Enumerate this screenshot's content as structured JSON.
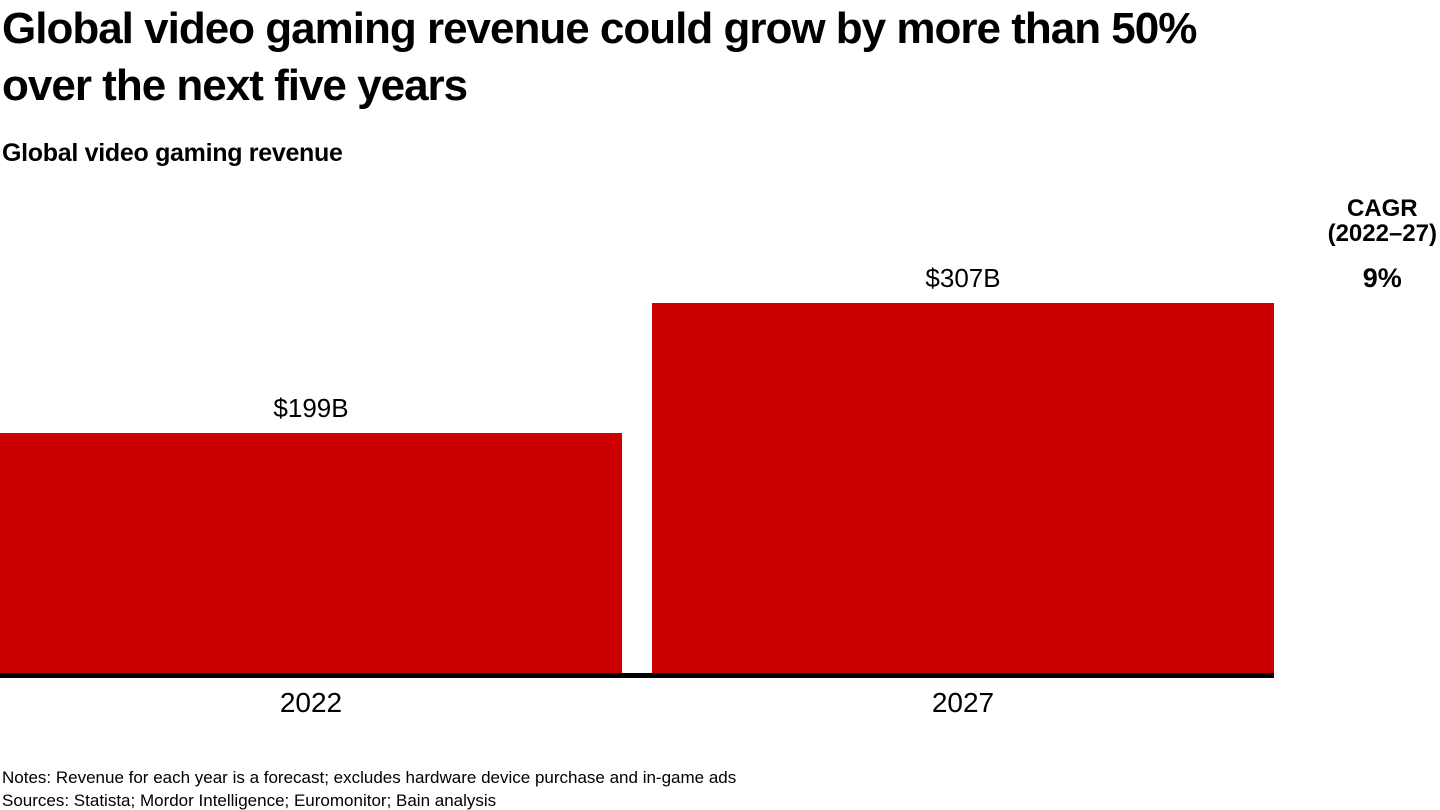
{
  "title_lines": [
    "Global video gaming revenue could grow by more than 50%",
    "over the next five years"
  ],
  "subtitle": "Global video gaming revenue",
  "cagr": {
    "label_line1": "CAGR",
    "label_line2": "(2022–27)",
    "value": "9%"
  },
  "chart_data": {
    "type": "bar",
    "title": "Global video gaming revenue",
    "unit": "USD billions",
    "categories": [
      "2022",
      "2027"
    ],
    "values": [
      199,
      307
    ],
    "value_labels": [
      "$199B",
      "$307B"
    ],
    "bar_color": "#cc0000",
    "axis_color": "#000000",
    "ylim": [
      0,
      307
    ],
    "grid": false,
    "legend": false,
    "annotations": {
      "cagr_label": "CAGR (2022–27)",
      "cagr_value": "9%"
    }
  },
  "colors": {
    "bar": "#cc0000",
    "axis": "#000000",
    "text": "#000000",
    "background": "#ffffff"
  },
  "notes": "Notes: Revenue for each year is a forecast; excludes hardware device purchase and in-game ads",
  "sources": "Sources: Statista; Mordor Intelligence; Euromonitor; Bain analysis"
}
